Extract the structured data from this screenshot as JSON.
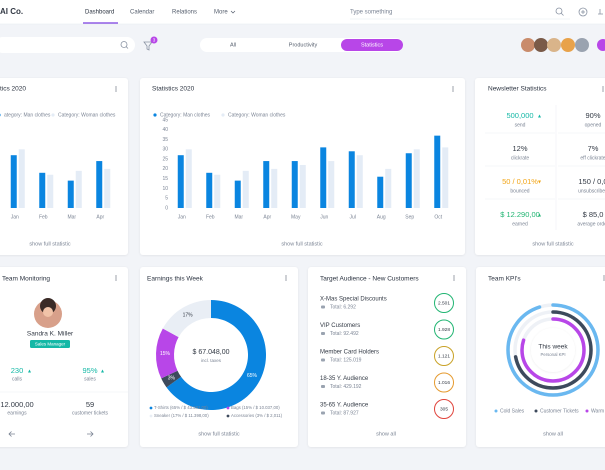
{
  "nav": {
    "brand": "AI Co.",
    "links": [
      "Dashboard",
      "Calendar",
      "Relations",
      "More"
    ],
    "search": "Type something"
  },
  "toolbar": {
    "filter_badge": "3",
    "tabs": [
      "All",
      "Productivity",
      "Statistics"
    ]
  },
  "stats_small": {
    "title": "tics 2020",
    "categories": [
      "Jan",
      "Feb",
      "Mar",
      "Apr"
    ],
    "series": [
      {
        "name": "ategory: Man clothes",
        "color": "#0a85e0",
        "values": [
          27,
          18,
          14,
          24
        ]
      },
      {
        "name": "Category: Woman clothes",
        "color": "#e4ecf6",
        "values": [
          30,
          17,
          19,
          20
        ]
      }
    ],
    "ylim": [
      0,
      45
    ],
    "footer": "show full statistic"
  },
  "stats": {
    "title": "Statistics 2020",
    "categories": [
      "Jan",
      "Feb",
      "Mar",
      "Apr",
      "May",
      "Jun",
      "Jul",
      "Aug",
      "Sep",
      "Oct"
    ],
    "series": [
      {
        "name": "Category: Man clothes",
        "color": "#0a85e0",
        "values": [
          27,
          18,
          14,
          24,
          24,
          31,
          29,
          16,
          28,
          37
        ]
      },
      {
        "name": "Category: Woman clothes",
        "color": "#e4ecf6",
        "values": [
          30,
          17,
          19,
          20,
          22,
          24,
          27,
          20,
          30,
          31
        ]
      }
    ],
    "ylim": [
      0,
      45
    ],
    "yticks": [
      0,
      5,
      10,
      15,
      20,
      25,
      30,
      35,
      40,
      45
    ],
    "footer": "show full statistic"
  },
  "newsletter": {
    "title": "Newsletter Statistics",
    "items": [
      {
        "value": "500,000",
        "label": "send",
        "trend": "up",
        "color": "#14b8a6"
      },
      {
        "value": "90%",
        "label": "opened",
        "color": "#333a45"
      },
      {
        "value": "12%",
        "label": "clickrate",
        "color": "#333a45"
      },
      {
        "value": "7%",
        "label": "eff clickrate",
        "color": "#333a45"
      },
      {
        "value": "50 / 0,01%",
        "label": "bounced",
        "trend": "down",
        "color": "#f2a516"
      },
      {
        "value": "150 / 0,0",
        "label": "unsubscribed",
        "color": "#333a45"
      },
      {
        "value": "$ 12.290,00",
        "label": "earned",
        "trend": "up",
        "color": "#22b573"
      },
      {
        "value": "$ 85,0",
        "label": "average order",
        "color": "#333a45"
      }
    ],
    "footer": "show full statistic"
  },
  "team": {
    "title": "Team Monitoring",
    "name": "Sandra K. Miller",
    "role": "Sales Manager",
    "stats": [
      {
        "value": "230",
        "label": "calls",
        "trend": "up",
        "color": "#14b8a6"
      },
      {
        "value": "95%",
        "label": "sales",
        "trend": "up",
        "color": "#14b8a6"
      },
      {
        "value": "12.000,00",
        "label": "earnings",
        "color": "#333a45"
      },
      {
        "value": "59",
        "label": "customer tickets",
        "color": "#333a45"
      }
    ]
  },
  "earnings": {
    "title": "Earnings this Week",
    "total": "$ 67.048,00",
    "note": "incl. taxes",
    "segments": [
      {
        "name": "T-Shirts (65% / $ 43.581,00)",
        "value": 65,
        "label": "65%",
        "color": "#0a85e0"
      },
      {
        "name": "Accessories (3% / $ 2,011)",
        "value": 3,
        "label": "3%",
        "color": "#3d4a5c"
      },
      {
        "name": "Bags (15% / $ 10.037,00)",
        "value": 15,
        "label": "15%",
        "color": "#b846e8"
      },
      {
        "name": "Sneaker (17% / $ 11.398,00)",
        "value": 17,
        "label": "17%",
        "color": "#e9eef5"
      }
    ],
    "footer": "show full statistic"
  },
  "audience": {
    "title": "Target Audience - New Customers",
    "items": [
      {
        "name": "X-Mas Special Discounts",
        "total": "Total: 6.292",
        "count": "2.501",
        "color": "#22b573"
      },
      {
        "name": "VIP Customers",
        "total": "Total: 92.492",
        "count": "1.928",
        "color": "#22b573"
      },
      {
        "name": "Member Card Holders",
        "total": "Total: 125.019",
        "count": "1.121",
        "color": "#c9a227"
      },
      {
        "name": "18-35 Y. Audience",
        "total": "Total: 429.192",
        "count": "1.016",
        "color": "#e59a2f"
      },
      {
        "name": "35-65 Y. Audience",
        "total": "Total: 87.927",
        "count": "305",
        "color": "#e0443c"
      }
    ],
    "footer": "show all"
  },
  "kpi": {
    "title": "Team KPI's",
    "center": "This week",
    "sub": "Personal KPI",
    "rings": [
      {
        "name": "Cold Sales",
        "value": 95,
        "color": "#6ab8f0"
      },
      {
        "name": "Customer Tickets",
        "value": 72,
        "color": "#3d4a5c"
      },
      {
        "name": "Warm",
        "value": 80,
        "color": "#b846e8"
      }
    ],
    "footer": "show all"
  }
}
